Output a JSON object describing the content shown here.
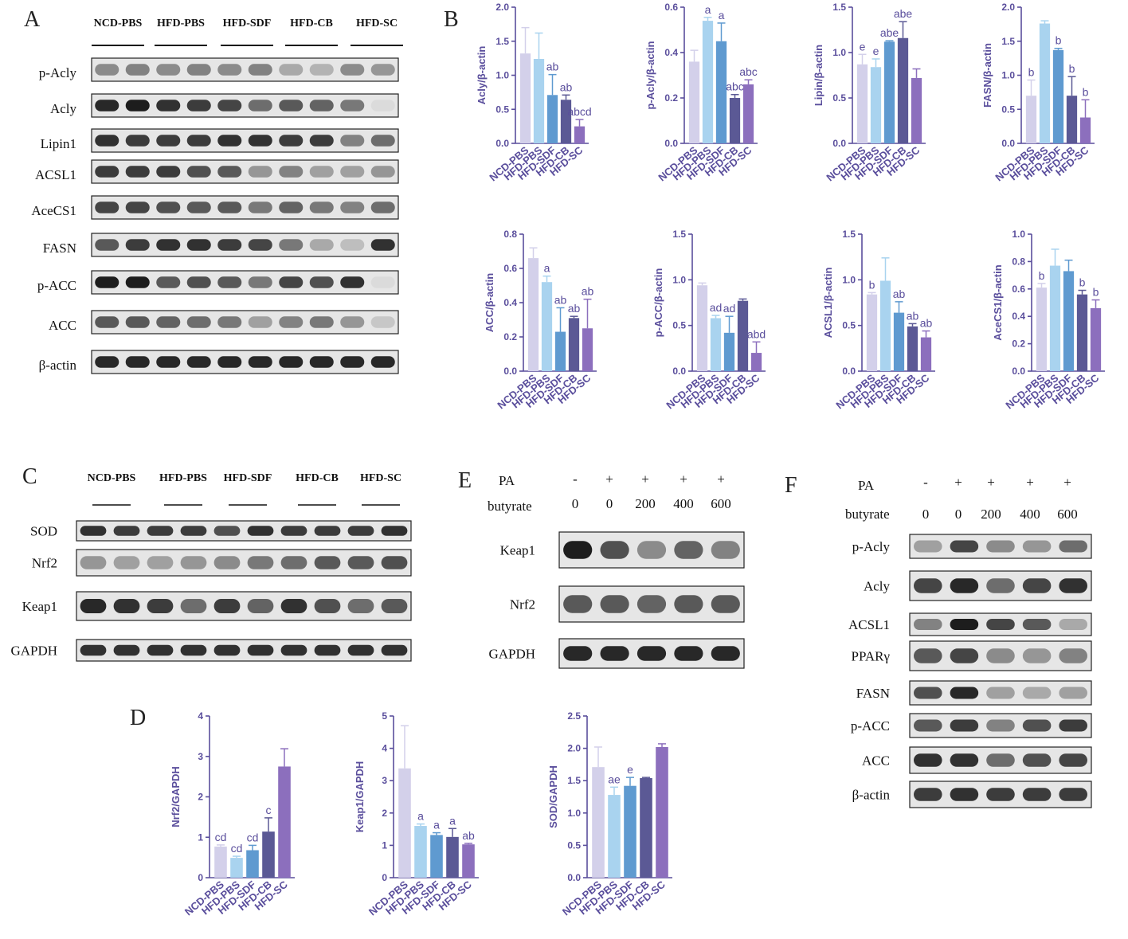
{
  "panel_labels": {
    "A": "A",
    "B": "B",
    "C": "C",
    "D": "D",
    "E": "E",
    "F": "F"
  },
  "colors": {
    "axis": "#5a4e9c",
    "bars": [
      "#d3d0ea",
      "#a9d3ef",
      "#5f9ad0",
      "#5b5995",
      "#8c6fbd"
    ],
    "band": "#1d1d1d",
    "membrane": "#e6e6e6"
  },
  "blot_A": {
    "groups": [
      "NCD-PBS",
      "HFD-PBS",
      "HFD-SDF",
      "HFD-CB",
      "HFD-SC"
    ],
    "rows": [
      "p-Acly",
      "Acly",
      "Lipin1",
      "ACSL1",
      "AceCS1",
      "FASN",
      "p-ACC",
      "ACC",
      "β-actin"
    ],
    "intensities": [
      [
        0.45,
        0.5,
        0.45,
        0.5,
        0.45,
        0.5,
        0.3,
        0.25,
        0.45,
        0.4
      ],
      [
        0.95,
        1.0,
        0.9,
        0.85,
        0.8,
        0.6,
        0.7,
        0.65,
        0.55,
        0.05
      ],
      [
        0.9,
        0.85,
        0.85,
        0.85,
        0.9,
        0.9,
        0.85,
        0.85,
        0.5,
        0.6
      ],
      [
        0.85,
        0.85,
        0.85,
        0.75,
        0.7,
        0.4,
        0.5,
        0.35,
        0.35,
        0.4
      ],
      [
        0.8,
        0.8,
        0.75,
        0.7,
        0.7,
        0.55,
        0.65,
        0.55,
        0.5,
        0.6
      ],
      [
        0.7,
        0.85,
        0.9,
        0.9,
        0.85,
        0.8,
        0.55,
        0.3,
        0.2,
        0.9
      ],
      [
        1.0,
        1.0,
        0.7,
        0.75,
        0.7,
        0.55,
        0.8,
        0.75,
        0.9,
        0.05
      ],
      [
        0.7,
        0.7,
        0.65,
        0.6,
        0.55,
        0.35,
        0.5,
        0.55,
        0.4,
        0.15
      ],
      [
        0.95,
        0.95,
        0.95,
        0.95,
        0.95,
        0.95,
        0.95,
        0.95,
        0.95,
        0.95
      ]
    ]
  },
  "blot_C": {
    "groups": [
      "NCD-PBS",
      "HFD-PBS",
      "HFD-SDF",
      "HFD-CB",
      "HFD-SC"
    ],
    "rows": [
      "SOD",
      "Nrf2",
      "Keap1",
      "GAPDH"
    ],
    "intensities": [
      [
        0.9,
        0.85,
        0.85,
        0.85,
        0.75,
        0.9,
        0.85,
        0.85,
        0.85,
        0.9
      ],
      [
        0.4,
        0.35,
        0.35,
        0.4,
        0.45,
        0.55,
        0.6,
        0.7,
        0.7,
        0.75
      ],
      [
        0.95,
        0.9,
        0.85,
        0.6,
        0.85,
        0.65,
        0.9,
        0.75,
        0.6,
        0.7
      ],
      [
        0.9,
        0.9,
        0.9,
        0.9,
        0.9,
        0.9,
        0.9,
        0.9,
        0.9,
        0.9
      ]
    ]
  },
  "blot_E": {
    "pa_label": "PA",
    "butyrate_label": "butyrate",
    "pa": [
      "-",
      "+",
      "+",
      "+",
      "+"
    ],
    "butyrate": [
      "0",
      "0",
      "200",
      "400",
      "600"
    ],
    "rows": [
      "Keap1",
      "Nrf2",
      "GAPDH"
    ],
    "intensities": [
      [
        1.0,
        0.75,
        0.45,
        0.65,
        0.5
      ],
      [
        0.7,
        0.7,
        0.65,
        0.7,
        0.7
      ],
      [
        0.95,
        0.95,
        0.95,
        0.95,
        0.95
      ]
    ]
  },
  "blot_F": {
    "pa_label": "PA",
    "butyrate_label": "butyrate",
    "pa": [
      "-",
      "+",
      "+",
      "+",
      "+"
    ],
    "butyrate": [
      "0",
      "0",
      "200",
      "400",
      "600"
    ],
    "rows": [
      "p-Acly",
      "Acly",
      "ACSL1",
      "PPARγ",
      "FASN",
      "p-ACC",
      "ACC",
      "β-actin"
    ],
    "intensities": [
      [
        0.35,
        0.8,
        0.45,
        0.4,
        0.6
      ],
      [
        0.8,
        0.95,
        0.6,
        0.8,
        0.9
      ],
      [
        0.5,
        1.0,
        0.8,
        0.7,
        0.3
      ],
      [
        0.7,
        0.8,
        0.45,
        0.4,
        0.5
      ],
      [
        0.75,
        0.95,
        0.35,
        0.3,
        0.35
      ],
      [
        0.7,
        0.85,
        0.5,
        0.75,
        0.85
      ],
      [
        0.9,
        0.9,
        0.6,
        0.75,
        0.8
      ],
      [
        0.85,
        0.9,
        0.85,
        0.85,
        0.85
      ]
    ]
  },
  "chart_data": [
    {
      "panel": "B",
      "type": "bar",
      "categories": [
        "NCD-PBS",
        "HFD-PBS",
        "HFD-SDF",
        "HFD-CB",
        "HFD-SC"
      ],
      "values": [
        1.32,
        1.24,
        0.71,
        0.64,
        0.25
      ],
      "errors": [
        0.38,
        0.38,
        0.3,
        0.07,
        0.1
      ],
      "annotations": [
        "",
        "",
        "ab",
        "ab",
        "abcd"
      ],
      "ylabel": "Acly/β-actin",
      "ylim": [
        0,
        2.0
      ],
      "yticks": [
        "0.0",
        "0.5",
        "1.0",
        "1.5",
        "2.0"
      ]
    },
    {
      "panel": "B",
      "type": "bar",
      "categories": [
        "NCD-PBS",
        "HFD-PBS",
        "HFD-SDF",
        "HFD-CB",
        "HFD-SC"
      ],
      "values": [
        0.36,
        0.54,
        0.45,
        0.2,
        0.26
      ],
      "errors": [
        0.05,
        0.015,
        0.08,
        0.015,
        0.02
      ],
      "annotations": [
        "",
        "a",
        "a",
        "abc",
        "abc"
      ],
      "ylabel": "p-Acly/β-actin",
      "ylim": [
        0,
        0.6
      ],
      "yticks": [
        "0.0",
        "0.2",
        "0.4",
        "0.6"
      ]
    },
    {
      "panel": "B",
      "type": "bar",
      "categories": [
        "NCD-PBS",
        "HFD-PBS",
        "HFD-SDF",
        "HFD-CB",
        "HFD-SC"
      ],
      "values": [
        0.87,
        0.84,
        1.12,
        1.16,
        0.72
      ],
      "errors": [
        0.11,
        0.09,
        0.01,
        0.18,
        0.1
      ],
      "annotations": [
        "e",
        "e",
        "abe",
        "abe",
        ""
      ],
      "ylabel": "Lipin/β-actin",
      "ylim": [
        0,
        1.5
      ],
      "yticks": [
        "0.0",
        "0.5",
        "1.0",
        "1.5"
      ]
    },
    {
      "panel": "B",
      "type": "bar",
      "categories": [
        "NCD-PBS",
        "HFD-PBS",
        "HFD-SDF",
        "HFD-CB",
        "HFD-SC"
      ],
      "values": [
        0.7,
        1.76,
        1.37,
        0.7,
        0.38
      ],
      "errors": [
        0.23,
        0.04,
        0.025,
        0.28,
        0.26
      ],
      "annotations": [
        "b",
        "",
        "b",
        "b",
        "b"
      ],
      "ylabel": "FASN/β-actin",
      "ylim": [
        0,
        2.0
      ],
      "yticks": [
        "0.0",
        "0.5",
        "1.0",
        "1.5",
        "2.0"
      ]
    },
    {
      "panel": "B",
      "type": "bar",
      "categories": [
        "NCD-PBS",
        "HFD-PBS",
        "HFD-SDF",
        "HFD-CB",
        "HFD-SC"
      ],
      "values": [
        0.66,
        0.52,
        0.23,
        0.31,
        0.25
      ],
      "errors": [
        0.06,
        0.035,
        0.14,
        0.01,
        0.17
      ],
      "annotations": [
        "",
        "a",
        "ab",
        "ab",
        "ab"
      ],
      "ylabel": "ACC/β-actin",
      "ylim": [
        0,
        0.8
      ],
      "yticks": [
        "0.0",
        "0.2",
        "0.4",
        "0.6",
        "0.8"
      ]
    },
    {
      "panel": "B",
      "type": "bar",
      "categories": [
        "NCD-PBS",
        "HFD-PBS",
        "HFD-SDF",
        "HFD-CB",
        "HFD-SC"
      ],
      "values": [
        0.94,
        0.58,
        0.42,
        0.77,
        0.2
      ],
      "errors": [
        0.025,
        0.03,
        0.18,
        0.02,
        0.12
      ],
      "annotations": [
        "",
        "ad",
        "ad",
        "",
        "abd"
      ],
      "ylabel": "p-ACC/β-actin",
      "ylim": [
        0,
        1.5
      ],
      "yticks": [
        "0.0",
        "0.5",
        "1.0",
        "1.5"
      ]
    },
    {
      "panel": "B",
      "type": "bar",
      "categories": [
        "NCD-PBS",
        "HFD-PBS",
        "HFD-SDF",
        "HFD-CB",
        "HFD-SC"
      ],
      "values": [
        0.84,
        0.99,
        0.64,
        0.49,
        0.37
      ],
      "errors": [
        0.02,
        0.25,
        0.12,
        0.03,
        0.07
      ],
      "annotations": [
        "b",
        "",
        "ab",
        "ab",
        "ab"
      ],
      "ylabel": "ACSL1/β-actin",
      "ylim": [
        0,
        1.5
      ],
      "yticks": [
        "0.0",
        "0.5",
        "1.0",
        "1.5"
      ]
    },
    {
      "panel": "B",
      "type": "bar",
      "categories": [
        "NCD-PBS",
        "HFD-PBS",
        "HFD-SDF",
        "HFD-CB",
        "HFD-SC"
      ],
      "values": [
        0.61,
        0.77,
        0.73,
        0.56,
        0.46
      ],
      "errors": [
        0.03,
        0.12,
        0.08,
        0.03,
        0.06
      ],
      "annotations": [
        "b",
        "",
        "",
        "b",
        "b"
      ],
      "ylabel": "AceCS1/β-actin",
      "ylim": [
        0,
        1.0
      ],
      "yticks": [
        "0.0",
        "0.2",
        "0.4",
        "0.6",
        "0.8",
        "1.0"
      ]
    },
    {
      "panel": "D",
      "type": "bar",
      "categories": [
        "NCD-PBS",
        "HFD-PBS",
        "HFD-SDF",
        "HFD-CB",
        "HFD-SC"
      ],
      "values": [
        0.77,
        0.49,
        0.68,
        1.14,
        2.75
      ],
      "errors": [
        0.04,
        0.04,
        0.12,
        0.34,
        0.44
      ],
      "annotations": [
        "cd",
        "cd",
        "cd",
        "c",
        ""
      ],
      "ylabel": "Nrf2/GAPDH",
      "ylim": [
        0,
        4
      ],
      "yticks": [
        "0",
        "1",
        "2",
        "3",
        "4"
      ]
    },
    {
      "panel": "D",
      "type": "bar",
      "categories": [
        "NCD-PBS",
        "HFD-PBS",
        "HFD-SDF",
        "HFD-CB",
        "HFD-SC"
      ],
      "values": [
        3.38,
        1.6,
        1.32,
        1.26,
        1.03
      ],
      "errors": [
        1.32,
        0.06,
        0.07,
        0.26,
        0.03
      ],
      "annotations": [
        "",
        "a",
        "a",
        "a",
        "ab"
      ],
      "ylabel": "Keap1/GAPDH",
      "ylim": [
        0,
        5
      ],
      "yticks": [
        "0",
        "1",
        "2",
        "3",
        "4",
        "5"
      ]
    },
    {
      "panel": "D",
      "type": "bar",
      "categories": [
        "NCD-PBS",
        "HFD-PBS",
        "HFD-SDF",
        "HFD-CB",
        "HFD-SC"
      ],
      "values": [
        1.71,
        1.28,
        1.42,
        1.54,
        2.02
      ],
      "errors": [
        0.31,
        0.12,
        0.13,
        0.01,
        0.05
      ],
      "annotations": [
        "",
        "ae",
        "e",
        "",
        ""
      ],
      "ylabel": "SOD/GAPDH",
      "ylim": [
        0,
        2.5
      ],
      "yticks": [
        "0.0",
        "0.5",
        "1.0",
        "1.5",
        "2.0",
        "2.5"
      ]
    }
  ]
}
